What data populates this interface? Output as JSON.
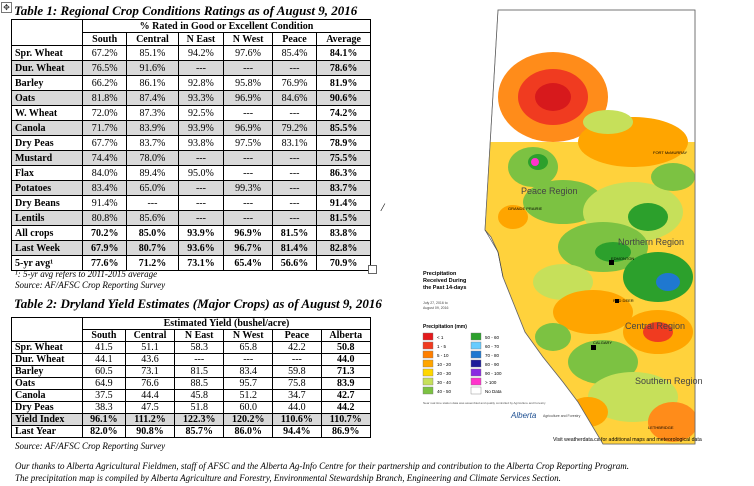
{
  "table1": {
    "title": "Table 1: Regional Crop Conditions Ratings as of August 9, 2016",
    "header_group": "% Rated in Good or Excellent Condition",
    "columns": [
      "South",
      "Central",
      "N East",
      "N West",
      "Peace",
      "Average"
    ],
    "rows": [
      {
        "label": "Spr. Wheat",
        "values": [
          "67.2%",
          "85.1%",
          "94.2%",
          "97.6%",
          "85.4%",
          "84.1%"
        ],
        "shade": false
      },
      {
        "label": "Dur. Wheat",
        "values": [
          "76.5%",
          "91.6%",
          "---",
          "---",
          "---",
          "78.6%"
        ],
        "shade": true
      },
      {
        "label": "Barley",
        "values": [
          "66.2%",
          "86.1%",
          "92.8%",
          "95.8%",
          "76.9%",
          "81.9%"
        ],
        "shade": false
      },
      {
        "label": "Oats",
        "values": [
          "81.8%",
          "87.4%",
          "93.3%",
          "96.9%",
          "84.6%",
          "90.6%"
        ],
        "shade": true
      },
      {
        "label": "W. Wheat",
        "values": [
          "72.0%",
          "87.3%",
          "92.5%",
          "---",
          "---",
          "74.2%"
        ],
        "shade": false
      },
      {
        "label": "Canola",
        "values": [
          "71.7%",
          "83.9%",
          "93.9%",
          "96.9%",
          "79.2%",
          "85.5%"
        ],
        "shade": true
      },
      {
        "label": "Dry Peas",
        "values": [
          "67.7%",
          "83.7%",
          "93.8%",
          "97.5%",
          "83.1%",
          "78.9%"
        ],
        "shade": false
      },
      {
        "label": "Mustard",
        "values": [
          "74.4%",
          "78.0%",
          "---",
          "---",
          "---",
          "75.5%"
        ],
        "shade": true
      },
      {
        "label": "Flax",
        "values": [
          "84.0%",
          "89.4%",
          "95.0%",
          "---",
          "---",
          "86.3%"
        ],
        "shade": false
      },
      {
        "label": "Potatoes",
        "values": [
          "83.4%",
          "65.0%",
          "---",
          "99.3%",
          "---",
          "83.7%"
        ],
        "shade": true
      },
      {
        "label": "Dry Beans",
        "values": [
          "91.4%",
          "---",
          "---",
          "---",
          "---",
          "91.4%"
        ],
        "shade": false
      },
      {
        "label": "Lentils",
        "values": [
          "80.8%",
          "85.6%",
          "---",
          "---",
          "---",
          "81.5%"
        ],
        "shade": true
      },
      {
        "label": "All crops",
        "values": [
          "70.2%",
          "85.0%",
          "93.9%",
          "96.9%",
          "81.5%",
          "83.8%"
        ],
        "shade": false,
        "bold": true
      },
      {
        "label": "Last Week",
        "values": [
          "67.9%",
          "80.7%",
          "93.6%",
          "96.7%",
          "81.4%",
          "82.8%"
        ],
        "shade": true,
        "bold": true
      },
      {
        "label": "5-yr avg¹",
        "values": [
          "77.6%",
          "71.2%",
          "73.1%",
          "65.4%",
          "56.6%",
          "70.9%"
        ],
        "shade": false,
        "bold": true
      }
    ],
    "footnote": "¹: 5-yr avg refers to 2011-2015 average",
    "source": "Source: AF/AFSC Crop Reporting Survey"
  },
  "table2": {
    "title": "Table 2: Dryland Yield Estimates (Major Crops) as of August 9, 2016",
    "header_group": "Estimated Yield (bushel/acre)",
    "columns": [
      "South",
      "Central",
      "N East",
      "N West",
      "Peace",
      "Alberta"
    ],
    "rows": [
      {
        "label": "Spr. Wheat",
        "values": [
          "41.5",
          "51.1",
          "58.3",
          "65.8",
          "42.2",
          "50.8"
        ],
        "shade": false
      },
      {
        "label": "Dur. Wheat",
        "values": [
          "44.1",
          "43.6",
          "---",
          "---",
          "---",
          "44.0"
        ],
        "shade": false
      },
      {
        "label": "Barley",
        "values": [
          "60.5",
          "73.1",
          "81.5",
          "83.4",
          "59.8",
          "71.3"
        ],
        "shade": false
      },
      {
        "label": "Oats",
        "values": [
          "64.9",
          "76.6",
          "88.5",
          "95.7",
          "75.8",
          "83.9"
        ],
        "shade": false
      },
      {
        "label": "Canola",
        "values": [
          "37.5",
          "44.4",
          "45.8",
          "51.2",
          "34.7",
          "42.7"
        ],
        "shade": false
      },
      {
        "label": "Dry Peas",
        "values": [
          "38.3",
          "47.5",
          "51.8",
          "60.0",
          "44.0",
          "44.2"
        ],
        "shade": false
      },
      {
        "label": "Yield Index",
        "values": [
          "96.1%",
          "111.2%",
          "122.3%",
          "120.2%",
          "110.6%",
          "110.7%"
        ],
        "shade": true,
        "bold": true
      },
      {
        "label": "Last Year",
        "values": [
          "82.0%",
          "90.8%",
          "85.7%",
          "86.0%",
          "94.4%",
          "86.9%"
        ],
        "shade": false,
        "bold": true
      }
    ],
    "source": "Source: AF/AFSC Crop Reporting Survey"
  },
  "acknowledgement": {
    "line1": "Our thanks to Alberta Agricultural Fieldmen, staff of AFSC and the Alberta Ag-Info Centre for their partnership and contribution to the Alberta Crop Reporting Program.",
    "line2": "The precipitation map is compiled by Alberta Agriculture and Forestry, Environmental Stewardship Branch, Engineering and Climate Services Section."
  },
  "map": {
    "title_line1": "Precipitation",
    "title_line2": "Received During",
    "title_line3": "the Past 14-days",
    "date_line1": "July 27, 2016 to",
    "date_line2": "August 09, 2016",
    "legend_title": "Precipitation (mm)",
    "legend": [
      {
        "label": "< 1",
        "color": "#e41a1c"
      },
      {
        "label": "1 - 5",
        "color": "#f03b20"
      },
      {
        "label": "5 - 10",
        "color": "#ff7f00"
      },
      {
        "label": "10 - 20",
        "color": "#ffa500"
      },
      {
        "label": "20 - 30",
        "color": "#ffd700"
      },
      {
        "label": "30 - 40",
        "color": "#c6e05a"
      },
      {
        "label": "40 - 50",
        "color": "#7cc242"
      },
      {
        "label": "50 - 60",
        "color": "#2ca02c"
      },
      {
        "label": "60 - 70",
        "color": "#66ccff"
      },
      {
        "label": "70 - 80",
        "color": "#1f78d0"
      },
      {
        "label": "80 - 90",
        "color": "#1c1c9a"
      },
      {
        "label": "90 - 100",
        "color": "#8a2be2"
      },
      {
        "label": "> 100",
        "color": "#ff33cc"
      },
      {
        "label": "No Data",
        "color": "#ffffff"
      }
    ],
    "region_peace": "Peace Region",
    "region_northern": "Northern Region",
    "region_central": "Central Region",
    "region_southern": "Southern Region",
    "city_grande_prairie": "GRANDE PRAIRIE",
    "city_fort_mcmurray": "FORT McMURRAY",
    "city_edmonton": "EDMONTON",
    "city_red_deer": "RED DEER",
    "city_calgary": "CALGARY",
    "city_lethbridge": "LETHBRIDGE",
    "note": "Near real time station data was assembled and quality controlled by Agriculture and Forestry",
    "agency": "Agriculture and Forestry",
    "brand": "Alberta",
    "footer": "Visit weatherdata.ca for additional maps and meteorological data"
  }
}
